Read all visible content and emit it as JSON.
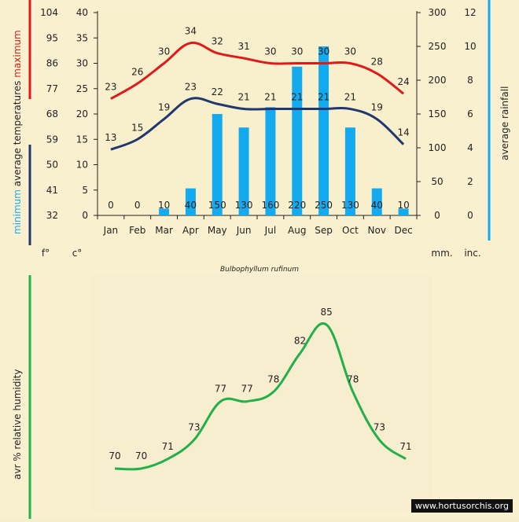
{
  "chart_data": [
    {
      "type": "bar",
      "title": "",
      "categories": [
        "Jan",
        "Feb",
        "Mar",
        "Apr",
        "May",
        "Jun",
        "Jul",
        "Aug",
        "Sep",
        "Oct",
        "Nov",
        "Dec"
      ],
      "series": [
        {
          "name": "maximum average temperature (°C)",
          "values": [
            23,
            26,
            30,
            34,
            32,
            31,
            30,
            30,
            30,
            30,
            28,
            24
          ],
          "color": "#e0191b"
        },
        {
          "name": "minimum average temperature (°C)",
          "values": [
            13,
            15,
            19,
            23,
            22,
            21,
            21,
            21,
            21,
            21,
            19,
            14
          ],
          "color": "#20376f"
        },
        {
          "name": "average rainfall (mm)",
          "values": [
            0,
            0,
            10,
            40,
            150,
            130,
            160,
            220,
            250,
            130,
            40,
            10
          ],
          "color": "#14aaf0"
        }
      ],
      "left_axis_c": {
        "ticks": [
          "0",
          "5",
          "10",
          "15",
          "20",
          "25",
          "30",
          "35",
          "40"
        ],
        "ylim": [
          0,
          40
        ],
        "unit": "c°"
      },
      "left_axis_f": {
        "ticks": [
          "32",
          "41",
          "50",
          "59",
          "68",
          "77",
          "86",
          "95",
          "104"
        ],
        "unit": "f°"
      },
      "right_axis_mm": {
        "ticks": [
          "0",
          "50",
          "100",
          "150",
          "200",
          "250",
          "300"
        ],
        "ylim": [
          0,
          300
        ],
        "unit": "mm."
      },
      "right_axis_inc": {
        "ticks": [
          "0",
          "2",
          "4",
          "6",
          "8",
          "10",
          "12"
        ],
        "unit": "inc."
      },
      "ylabel_left": [
        "minimum",
        "average",
        "temperatures",
        "maximum"
      ],
      "ylabel_right": "average rainfall",
      "caption": "Bulbophyllum rufinum"
    },
    {
      "type": "line",
      "categories": [
        "Jan",
        "Feb",
        "Mar",
        "Apr",
        "May",
        "Jun",
        "Jul",
        "Aug",
        "Sep",
        "Oct",
        "Nov",
        "Dec"
      ],
      "series": [
        {
          "name": "avr % relative humidity",
          "values": [
            70,
            70,
            71,
            73,
            77,
            77,
            78,
            82,
            85,
            78,
            73,
            71
          ],
          "color": "#22b04a"
        }
      ],
      "ylabel": "avr % relative humidity",
      "ylim": [
        68,
        86
      ]
    }
  ],
  "watermark": "www.hortusorchis.org"
}
